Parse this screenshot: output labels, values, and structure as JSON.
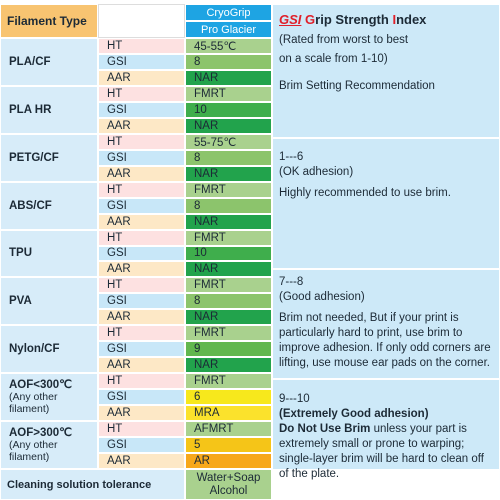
{
  "header": {
    "filament_type": "Filament Type",
    "product": [
      "CryoGrip",
      "Pro Glacier"
    ]
  },
  "table": {
    "params": [
      "HT",
      "GSI",
      "AAR"
    ],
    "rows": [
      {
        "filament": [
          "PLA/CF"
        ],
        "values": [
          "45-55℃",
          "8",
          "NAR"
        ],
        "colors": [
          "#a9d18e",
          "#8cc46c",
          "#22a34c"
        ]
      },
      {
        "filament": [
          "PLA HR"
        ],
        "values": [
          "FMRT",
          "10",
          "NAR"
        ],
        "colors": [
          "#a9d18e",
          "#3fae4c",
          "#22a34c"
        ]
      },
      {
        "filament": [
          "PETG/CF"
        ],
        "values": [
          "55-75℃",
          "8",
          "NAR"
        ],
        "colors": [
          "#a9d18e",
          "#8cc46c",
          "#22a34c"
        ]
      },
      {
        "filament": [
          "ABS/CF"
        ],
        "values": [
          "FMRT",
          "8",
          "NAR"
        ],
        "colors": [
          "#a9d18e",
          "#8cc46c",
          "#22a34c"
        ]
      },
      {
        "filament": [
          "TPU"
        ],
        "values": [
          "FMRT",
          "10",
          "NAR"
        ],
        "colors": [
          "#a9d18e",
          "#3fae4c",
          "#22a34c"
        ]
      },
      {
        "filament": [
          "PVA"
        ],
        "values": [
          "FMRT",
          "8",
          "NAR"
        ],
        "colors": [
          "#a9d18e",
          "#8cc46c",
          "#22a34c"
        ]
      },
      {
        "filament": [
          "Nylon/CF"
        ],
        "values": [
          "FMRT",
          "9",
          "NAR"
        ],
        "colors": [
          "#a9d18e",
          "#62b74f",
          "#22a34c"
        ]
      },
      {
        "filament": [
          "AOF<300℃",
          "(Any other",
          "filament)"
        ],
        "values": [
          "FMRT",
          "6",
          "MRA"
        ],
        "colors": [
          "#a9d18e",
          "#f7e81c",
          "#fbe22c"
        ]
      },
      {
        "filament": [
          "AOF>300℃",
          "(Any other",
          "filament)"
        ],
        "values": [
          "AFMRT",
          "5",
          "AR"
        ],
        "colors": [
          "#a9d18e",
          "#f5c518",
          "#f7a81b"
        ]
      }
    ],
    "footer": {
      "label": "Cleaning solution tolerance",
      "value": [
        "Water+Soap",
        "Alcohol"
      ]
    }
  },
  "notes": {
    "title": [
      "GSI",
      "G",
      "rip Strength ",
      "I",
      "ndex"
    ],
    "subtitle": [
      "(Rated from worst to best",
      "on a scale from 1-10)"
    ],
    "brim_heading": "Brim Setting Recommendation",
    "levels": [
      {
        "range": "1---6",
        "label": "(OK adhesion)",
        "text": "Highly recommended to use brim."
      },
      {
        "range": "7---8",
        "label": "(Good adhesion)",
        "text": "Brim not needed, But if your print is particularly hard to print, use brim to improve adhesion. If only odd corners are lifting, use mouse ear pads on the corner."
      },
      {
        "range": "9---10",
        "label": "(Extremely Good adhesion)",
        "bold": "Do Not Use Brim",
        "text": " unless your part is extremely small or prone to warping; single-layer brim will be hard to clean off of the plate."
      }
    ]
  }
}
